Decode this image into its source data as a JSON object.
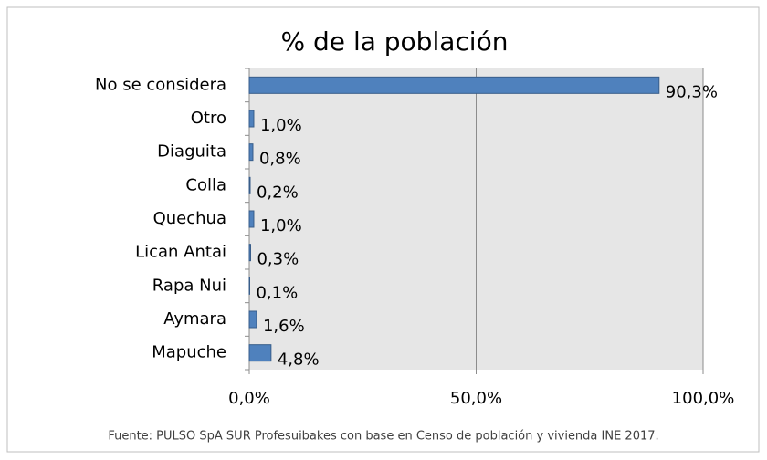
{
  "chart_data": {
    "type": "bar",
    "orientation": "horizontal",
    "title": "% de la población",
    "categories": [
      "No se considera",
      "Otro",
      "Diaguita",
      "Colla",
      "Quechua",
      "Lican Antai",
      "Rapa Nui",
      "Aymara",
      "Mapuche"
    ],
    "values": [
      90.3,
      1.0,
      0.8,
      0.2,
      1.0,
      0.3,
      0.1,
      1.6,
      4.8
    ],
    "value_labels": [
      "90,3%",
      "1,0%",
      "0,8%",
      "0,2%",
      "1,0%",
      "0,3%",
      "0,1%",
      "1,6%",
      "4,8%"
    ],
    "color": "#4f81bd",
    "xlim": [
      0,
      100
    ],
    "xticks": [
      {
        "value": 0,
        "label": "0,0%"
      },
      {
        "value": 50,
        "label": "50,0%"
      },
      {
        "value": 100,
        "label": "100,0%"
      }
    ],
    "grid": true,
    "source": "Fuente: PULSO SpA SUR Profesuibakes  con base en Censo de población y vivienda INE 2017."
  }
}
